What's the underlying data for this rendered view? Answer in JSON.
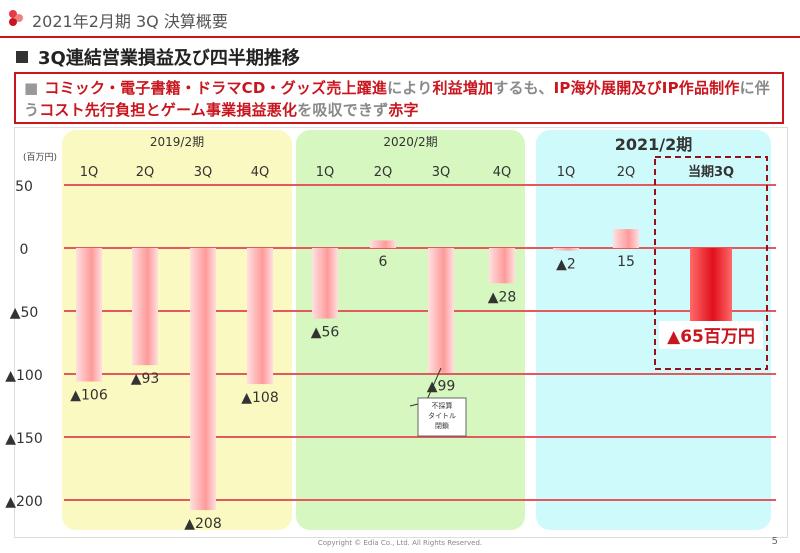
{
  "header": {
    "title": "2021年2月期 3Q 決算概要"
  },
  "section": {
    "title": "3Q連結営業損益及び四半期推移"
  },
  "highlight": {
    "bullet": "■",
    "parts": [
      {
        "text": "コミック・電子書籍・ドラマCD・グッズ売上躍進",
        "color": "red"
      },
      {
        "text": "により",
        "color": "gray"
      },
      {
        "text": "利益増加",
        "color": "red"
      },
      {
        "text": "するも、",
        "color": "gray"
      },
      {
        "text": "IP海外展開及びIP作品制作",
        "color": "red"
      },
      {
        "text": "に伴う",
        "color": "gray"
      },
      {
        "text": "コスト先行負担とゲーム事業損益悪化",
        "color": "red"
      },
      {
        "text": "を吸収できず",
        "color": "gray"
      },
      {
        "text": "赤字",
        "color": "red"
      }
    ]
  },
  "chart_data": {
    "type": "bar",
    "unit_label": "(百万円)",
    "ylim": [
      -208,
      55
    ],
    "y_ticks": [
      {
        "value": 50,
        "label": "50"
      },
      {
        "value": 0,
        "label": "0"
      },
      {
        "value": -50,
        "label": "▲50"
      },
      {
        "value": -100,
        "label": "▲100"
      },
      {
        "value": -150,
        "label": "▲150"
      },
      {
        "value": -200,
        "label": "▲200"
      }
    ],
    "grid": true,
    "periods": [
      {
        "name": "2019/2期",
        "color": "#fbf9c2",
        "emphasis": false
      },
      {
        "name": "2020/2期",
        "color": "#d6f7bf",
        "emphasis": false
      },
      {
        "name": "2021/2期",
        "color": "#cffafb",
        "emphasis": true
      }
    ],
    "categories": [
      "1Q",
      "2Q",
      "3Q",
      "4Q",
      "1Q",
      "2Q",
      "3Q",
      "4Q",
      "1Q",
      "2Q",
      "当期3Q"
    ],
    "category_period": [
      0,
      0,
      0,
      0,
      1,
      1,
      1,
      1,
      2,
      2,
      2
    ],
    "values": [
      -106,
      -93,
      -208,
      -108,
      -56,
      6,
      -99,
      -28,
      -2,
      15,
      -65
    ],
    "value_labels": [
      "▲106",
      "▲93",
      "▲208",
      "▲108",
      "▲56",
      "6",
      "▲99",
      "▲28",
      "▲2",
      "15",
      "▲65百万円"
    ],
    "current_index": 10,
    "annotation": {
      "text": [
        "不採算",
        "タイトル",
        "閉鎖"
      ],
      "target_index": 6
    },
    "colors": {
      "bar": "#ff9a9a",
      "bar_light": "#ffe0e0",
      "current_bar": "#e0101c",
      "grid": "#e05a60",
      "accent": "#c9151e"
    }
  },
  "footer": {
    "copyright": "Copyright © Edia Co., Ltd. All Rights Reserved.",
    "page": "5"
  }
}
